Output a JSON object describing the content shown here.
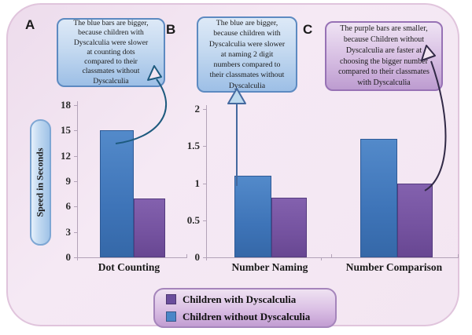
{
  "figure": {
    "background_color": "#f3e6f2",
    "border_color": "#e0c4dc"
  },
  "chart_data": {
    "type": "bar",
    "title": "",
    "xlabel": "",
    "ylabel": "Speed in Seconds",
    "grid": false,
    "legend_position": "bottom",
    "categories": [
      "Dot Counting",
      "Number Naming",
      "Number Comparison"
    ],
    "series": [
      {
        "name": "Children without Dyscalculia",
        "color": "#3e74b8",
        "values": [
          15,
          1.1,
          1.6
        ]
      },
      {
        "name": "Children with Dyscalculia",
        "color": "#74529f",
        "values": [
          7,
          0.8,
          1.0
        ]
      }
    ],
    "panels": [
      {
        "letter": "A",
        "ylim": [
          0,
          18
        ],
        "yticks": [
          "0",
          "3",
          "6",
          "9",
          "12",
          "15",
          "18"
        ],
        "axis_visible": true
      },
      {
        "letter": "B",
        "ylim": [
          0,
          2
        ],
        "yticks": [
          "0",
          "0.5",
          "1",
          "1.5",
          "2"
        ],
        "axis_visible": true
      },
      {
        "letter": "C",
        "ylim": [
          0,
          2
        ],
        "yticks": [],
        "axis_visible": false
      }
    ]
  },
  "callouts": [
    {
      "text": "The blue bars are bigger,\nbecause children with\nDyscalculia were slower\nat counting dots\ncompared to their\nclassmates without\nDyscalculia",
      "style": "blue"
    },
    {
      "text": "The blue are bigger,\nbecause children with\nDyscalculia were slower\nat naming 2 digit\nnumbers compared to\ntheir classmates without\nDyscalculia",
      "style": "blue"
    },
    {
      "text": "The purple bars are smaller,\nbecause Children without\nDyscalculia are faster at\nchoosing the bigger number\ncompared to their classmates\nwith Dyscalculia",
      "style": "purple"
    }
  ],
  "legend": {
    "items": [
      {
        "label": "Children with Dyscalculia",
        "color": "#6a4d9c"
      },
      {
        "label": "Children without Dyscalculia",
        "color": "#4a86c8"
      }
    ]
  },
  "colors": {
    "blue_bar": "#3e74b8",
    "purple_bar": "#74529f",
    "callout_blue_border": "#5d8ac1",
    "callout_purple_border": "#9772b5",
    "arrow_blue": "#1d5a7e",
    "arrow_steel": "#44699f",
    "arrow_dark": "#322a47",
    "axis": "#b3a3b8"
  }
}
